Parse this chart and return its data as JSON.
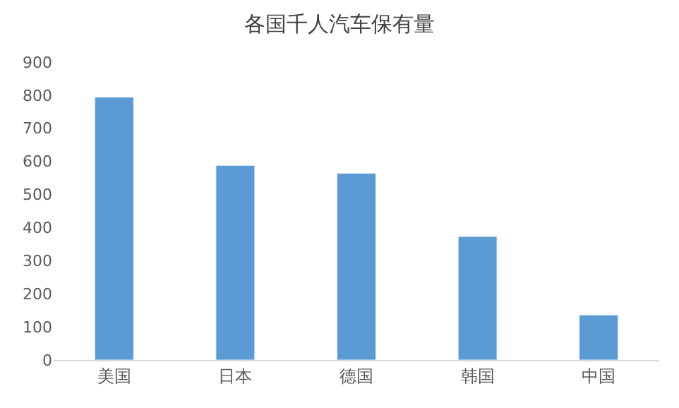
{
  "chart_data": {
    "type": "bar",
    "title": "各国千人汽车保有量",
    "categories": [
      "美国",
      "日本",
      "德国",
      "韩国",
      "中国"
    ],
    "values": [
      794,
      588,
      564,
      373,
      136
    ],
    "color": "#5b9bd5",
    "ylim": [
      0,
      900
    ],
    "yticks": [
      0,
      100,
      200,
      300,
      400,
      500,
      600,
      700,
      800,
      900
    ],
    "grid": false,
    "legend": false
  }
}
